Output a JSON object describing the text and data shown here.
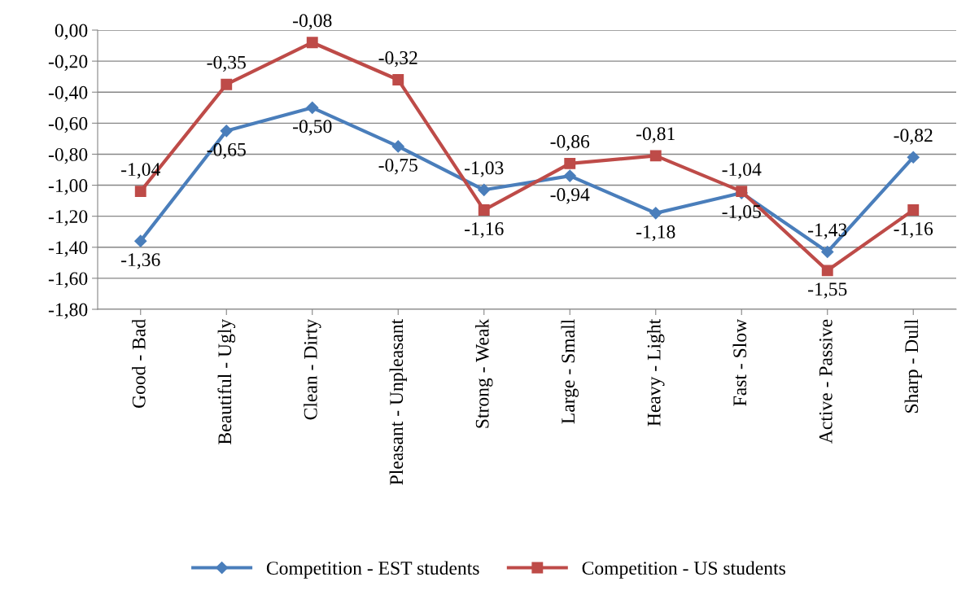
{
  "chart_data": {
    "type": "line",
    "categories": [
      "Good - Bad",
      "Beautiful - Ugly",
      "Clean - Dirty",
      "Pleasant - Unpleasant",
      "Strong - Weak",
      "Large - Small",
      "Heavy - Light",
      "Fast - Slow",
      "Active - Passive",
      "Sharp - Dull"
    ],
    "series": [
      {
        "name": "Competition - EST students",
        "color": "#4a7ebb",
        "marker": "diamond",
        "values": [
          -1.36,
          -0.65,
          -0.5,
          -0.75,
          -1.03,
          -0.94,
          -1.18,
          -1.05,
          -1.43,
          -0.82
        ],
        "value_labels": [
          "-1,36",
          "-0,65",
          "-0,50",
          "-0,75",
          "-1,03",
          "-0,94",
          "-1,18",
          "-1,05",
          "-1,43",
          "-0,82"
        ]
      },
      {
        "name": "Competition - US students",
        "color": "#be4b48",
        "marker": "square",
        "values": [
          -1.04,
          -0.35,
          -0.08,
          -0.32,
          -1.16,
          -0.86,
          -0.81,
          -1.04,
          -1.55,
          -1.16
        ],
        "value_labels": [
          "-1,04",
          "-0,35",
          "-0,08",
          "-0,32",
          "-1,16",
          "-0,86",
          "-0,81",
          "-1,04",
          "-1,55",
          "-1,16"
        ]
      }
    ],
    "ylim": [
      -1.8,
      0
    ],
    "yticks": [
      {
        "value": 0,
        "label": "0,00"
      },
      {
        "value": -0.2,
        "label": "-0,20"
      },
      {
        "value": -0.4,
        "label": "-0,40"
      },
      {
        "value": -0.6,
        "label": "-0,60"
      },
      {
        "value": -0.8,
        "label": "-0,80"
      },
      {
        "value": -1.0,
        "label": "-1,00"
      },
      {
        "value": -1.2,
        "label": "-1,20"
      },
      {
        "value": -1.4,
        "label": "-1,40"
      },
      {
        "value": -1.6,
        "label": "-1,60"
      },
      {
        "value": -1.8,
        "label": "-1,80"
      }
    ],
    "grid": "y",
    "legend": "bottom",
    "line_style": "solid"
  }
}
